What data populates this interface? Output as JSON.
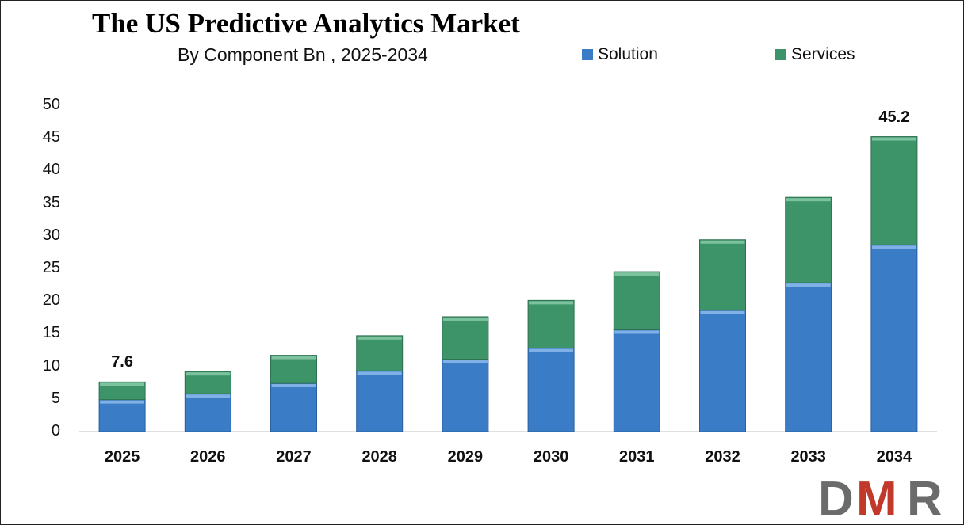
{
  "chart_data": {
    "type": "bar",
    "stacked": true,
    "title": "The US Predictive Analytics Market",
    "subtitle": "By Component Bn , 2025-2034",
    "categories": [
      "2025",
      "2026",
      "2027",
      "2028",
      "2029",
      "2030",
      "2031",
      "2032",
      "2033",
      "2034"
    ],
    "series": [
      {
        "name": "Solution",
        "color": "#3A7CC5",
        "values": [
          4.9,
          5.8,
          7.4,
          9.3,
          11.1,
          12.8,
          15.6,
          18.6,
          22.8,
          28.6
        ]
      },
      {
        "name": "Services",
        "color": "#3E9469",
        "values": [
          2.7,
          3.4,
          4.3,
          5.4,
          6.5,
          7.3,
          8.9,
          10.8,
          13.1,
          16.6
        ]
      }
    ],
    "data_labels": [
      {
        "category": "2025",
        "text": "7.6"
      },
      {
        "category": "2034",
        "text": "45.2"
      }
    ],
    "ylim": [
      0,
      50
    ],
    "yticks": [
      "0",
      "5",
      "10",
      "15",
      "20",
      "25",
      "30",
      "35",
      "40",
      "45",
      "50"
    ],
    "grid": false,
    "legend_position": "top-right"
  },
  "logo": {
    "text": "DMR",
    "icon": "dmr-logo"
  }
}
